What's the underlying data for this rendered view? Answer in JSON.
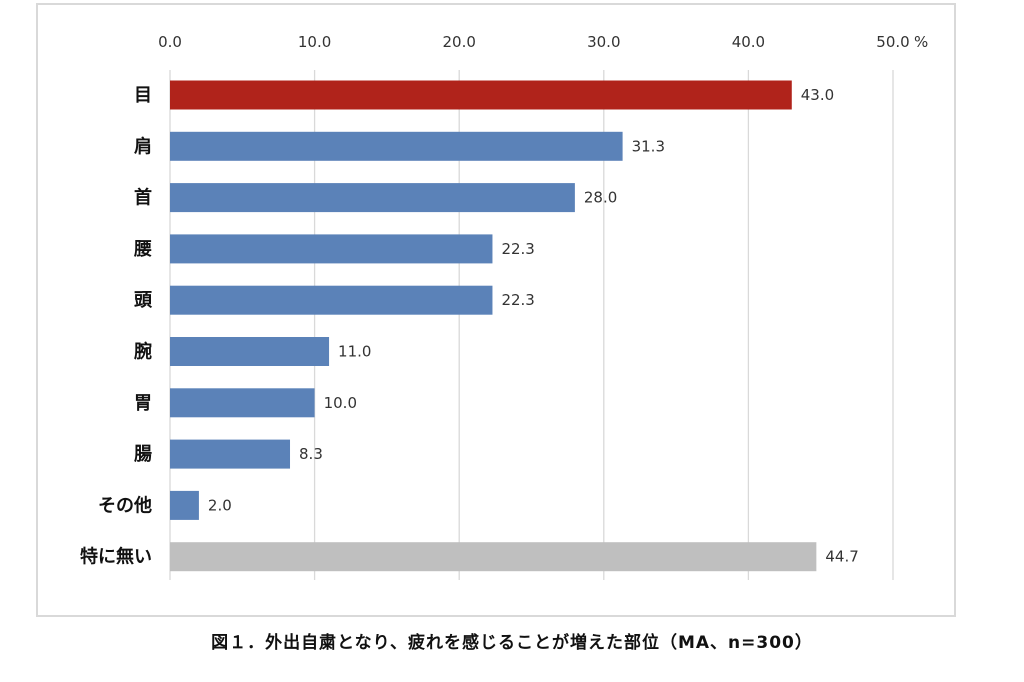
{
  "caption": "図１．外出自粛となり、疲れを感じることが増えた部位（MA、n=300）",
  "chart_data": {
    "type": "bar",
    "orientation": "horizontal",
    "title": "",
    "xlabel": "",
    "ylabel": "",
    "axis_position": "top",
    "xlim": [
      0,
      50
    ],
    "tick_values": [
      0,
      10,
      20,
      30,
      40,
      50
    ],
    "tick_labels": [
      "0.0",
      "10.0",
      "20.0",
      "30.0",
      "40.0",
      "50.0"
    ],
    "unit": "%",
    "grid": true,
    "legend": "none",
    "categories": [
      "目",
      "肩",
      "首",
      "腰",
      "頭",
      "腕",
      "胃",
      "腸",
      "その他",
      "特に無い"
    ],
    "values": [
      43.0,
      31.3,
      28.0,
      22.3,
      22.3,
      11.0,
      10.0,
      8.3,
      2.0,
      44.7
    ],
    "value_labels": [
      "43.0",
      "31.3",
      "28.0",
      "22.3",
      "22.3",
      "11.0",
      "10.0",
      "8.3",
      "2.0",
      "44.7"
    ],
    "bar_colors": [
      "#b0231b",
      "#5b82b8",
      "#5b82b8",
      "#5b82b8",
      "#5b82b8",
      "#5b82b8",
      "#5b82b8",
      "#5b82b8",
      "#5b82b8",
      "#bfbfbf"
    ],
    "grid_color": "#d9d9d9"
  }
}
